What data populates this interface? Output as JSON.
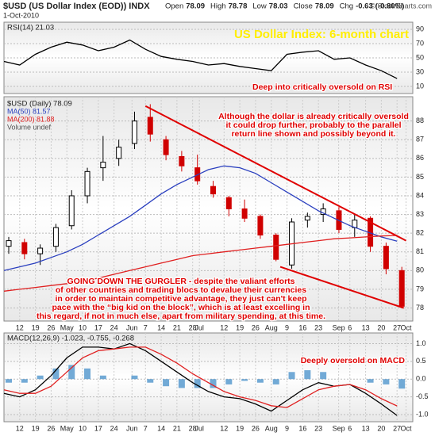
{
  "header": {
    "title": "$USD (US Dollar Index (EOD)) INDX",
    "date": "1-Oct-2010",
    "quote": [
      {
        "label": "Open",
        "value": 78.09
      },
      {
        "label": "High",
        "value": 78.78
      },
      {
        "label": "Low",
        "value": 78.03
      },
      {
        "label": "Close",
        "value": 78.09
      },
      {
        "label": "Chg",
        "value": -0.63
      }
    ],
    "change_pct": "(-0.80%)",
    "copyright": "© StockCharts.com"
  },
  "chart_data": [
    {
      "type": "line",
      "title": "US Dollar Index: 6-month chart",
      "title_color": "#ffee00",
      "legend": "RSI(14) 21.03",
      "x": [
        "2010-04-05",
        "2010-04-12",
        "2010-04-19",
        "2010-04-26",
        "2010-05-03",
        "2010-05-10",
        "2010-05-17",
        "2010-05-24",
        "2010-05-31",
        "2010-06-07",
        "2010-06-14",
        "2010-06-21",
        "2010-06-28",
        "2010-07-05",
        "2010-07-12",
        "2010-07-19",
        "2010-07-26",
        "2010-08-02",
        "2010-08-09",
        "2010-08-16",
        "2010-08-23",
        "2010-08-30",
        "2010-09-06",
        "2010-09-13",
        "2010-09-20",
        "2010-09-27"
      ],
      "series": [
        {
          "name": "RSI(14)",
          "color": "#000000",
          "values": [
            45,
            40,
            55,
            65,
            72,
            68,
            60,
            65,
            75,
            62,
            52,
            48,
            45,
            40,
            42,
            38,
            35,
            32,
            55,
            58,
            60,
            48,
            50,
            40,
            32,
            21.03
          ]
        }
      ],
      "xlim": [
        "2010-04-05",
        "2010-10-04"
      ],
      "ylim": [
        0,
        100
      ],
      "yticks": [
        10,
        30,
        50,
        70,
        90
      ],
      "grid": true,
      "annotations": [
        {
          "lines": [
            "Deep into critically oversold on RSI"
          ]
        }
      ]
    },
    {
      "type": "candlestick",
      "name": "$USD (Daily) 78.09",
      "volume_label": "Volume undef",
      "up_color": "#000000",
      "down_color": "#d00000",
      "x": [
        "2010-04-05",
        "2010-04-12",
        "2010-04-19",
        "2010-04-26",
        "2010-05-03",
        "2010-05-10",
        "2010-05-17",
        "2010-05-24",
        "2010-05-31",
        "2010-06-07",
        "2010-06-14",
        "2010-06-21",
        "2010-06-28",
        "2010-07-05",
        "2010-07-12",
        "2010-07-19",
        "2010-07-26",
        "2010-08-02",
        "2010-08-09",
        "2010-08-16",
        "2010-08-23",
        "2010-08-30",
        "2010-09-06",
        "2010-09-13",
        "2010-09-20",
        "2010-09-27"
      ],
      "open": [
        81.3,
        81.5,
        80.9,
        81.3,
        82.4,
        84.0,
        85.5,
        86.0,
        86.8,
        88.2,
        87.0,
        86.1,
        85.5,
        84.5,
        83.9,
        83.3,
        82.9,
        81.9,
        80.3,
        82.7,
        83.0,
        83.2,
        82.3,
        82.8,
        81.3,
        80.0
      ],
      "high": [
        81.8,
        81.7,
        81.4,
        82.5,
        84.3,
        85.5,
        87.2,
        87.0,
        88.5,
        88.9,
        87.2,
        86.4,
        86.2,
        84.8,
        84.0,
        83.8,
        83.0,
        82.0,
        82.8,
        83.1,
        83.6,
        83.4,
        83.0,
        82.9,
        81.5,
        80.2
      ],
      "low": [
        80.9,
        80.6,
        80.3,
        81.0,
        82.2,
        83.6,
        84.8,
        85.6,
        86.5,
        86.9,
        85.9,
        85.3,
        84.6,
        83.9,
        82.9,
        82.6,
        81.7,
        80.5,
        80.1,
        82.3,
        82.6,
        82.0,
        81.8,
        81.0,
        79.8,
        78.03
      ],
      "close": [
        81.6,
        80.9,
        81.2,
        82.3,
        84.0,
        85.3,
        85.8,
        86.6,
        88.0,
        87.3,
        86.2,
        85.6,
        84.8,
        84.1,
        83.3,
        82.8,
        81.9,
        80.6,
        82.6,
        82.9,
        83.3,
        82.2,
        82.7,
        81.3,
        80.1,
        78.09
      ],
      "series": [
        {
          "name": "MA(50) 81.57",
          "color": "#2a3fbf",
          "values": [
            80.0,
            80.2,
            80.4,
            80.7,
            81.0,
            81.4,
            81.9,
            82.4,
            82.9,
            83.5,
            84.1,
            84.6,
            85.0,
            85.4,
            85.6,
            85.5,
            85.2,
            84.7,
            84.2,
            83.7,
            83.2,
            82.8,
            82.4,
            82.1,
            81.8,
            81.57
          ]
        },
        {
          "name": "MA(200) 81.88",
          "color": "#e02020",
          "values": [
            78.9,
            79.0,
            79.1,
            79.2,
            79.3,
            79.4,
            79.6,
            79.8,
            80.0,
            80.2,
            80.4,
            80.6,
            80.8,
            80.9,
            81.0,
            81.1,
            81.2,
            81.3,
            81.4,
            81.5,
            81.6,
            81.7,
            81.75,
            81.8,
            81.85,
            81.88
          ]
        }
      ],
      "trendlines": [
        {
          "color": "#e00000",
          "x": [
            "2010-06-07",
            "2010-10-01"
          ],
          "y": [
            88.8,
            81.6
          ]
        },
        {
          "color": "#e00000",
          "x": [
            "2010-08-06",
            "2010-09-30"
          ],
          "y": [
            80.2,
            78.0
          ]
        }
      ],
      "xlim": [
        "2010-04-05",
        "2010-10-04"
      ],
      "ylim": [
        77.3,
        89.3
      ],
      "yticks": [
        78,
        79,
        80,
        81,
        82,
        83,
        84,
        85,
        86,
        87,
        88
      ],
      "grid": true,
      "xticks": [
        {
          "value": "2010-04-12",
          "label": "12"
        },
        {
          "value": "2010-04-19",
          "label": "19"
        },
        {
          "value": "2010-04-26",
          "label": "26"
        },
        {
          "value": "2010-05-03",
          "label": "May"
        },
        {
          "value": "2010-05-10",
          "label": "10"
        },
        {
          "value": "2010-05-17",
          "label": "17"
        },
        {
          "value": "2010-05-24",
          "label": "24"
        },
        {
          "value": "2010-06-01",
          "label": "Jun"
        },
        {
          "value": "2010-06-07",
          "label": "7"
        },
        {
          "value": "2010-06-14",
          "label": "14"
        },
        {
          "value": "2010-06-21",
          "label": "21"
        },
        {
          "value": "2010-06-28",
          "label": "28"
        },
        {
          "value": "2010-07-01",
          "label": "Jul"
        },
        {
          "value": "2010-07-12",
          "label": "12"
        },
        {
          "value": "2010-07-19",
          "label": "19"
        },
        {
          "value": "2010-07-26",
          "label": "26"
        },
        {
          "value": "2010-08-02",
          "label": "Aug"
        },
        {
          "value": "2010-08-09",
          "label": "9"
        },
        {
          "value": "2010-08-16",
          "label": "16"
        },
        {
          "value": "2010-08-23",
          "label": "23"
        },
        {
          "value": "2010-09-01",
          "label": "Sep"
        },
        {
          "value": "2010-09-06",
          "label": "6"
        },
        {
          "value": "2010-09-13",
          "label": "13"
        },
        {
          "value": "2010-09-20",
          "label": "20"
        },
        {
          "value": "2010-09-27",
          "label": "27"
        },
        {
          "value": "2010-10-01",
          "label": "Oct"
        }
      ],
      "annotations": [
        {
          "lines": [
            "Although the dollar is already critically oversold",
            "it could drop further, probably to the parallel",
            "return line shown and possibly beyond it."
          ]
        },
        {
          "lines": [
            "GOING DOWN THE GURGLER - despite the valiant efforts",
            "of other countries and trading blocs to devalue their currencies",
            "in order to maintain competitive advantage, they just can't keep",
            "pace with the “big kid on the block”, which is at least excelling in",
            "this regard, if not in much else, apart from military spending, at this time."
          ]
        }
      ]
    },
    {
      "type": "macd",
      "legend": "MACD(12,26,9) -1.023, -0.755, -0.268",
      "x": [
        "2010-04-05",
        "2010-04-12",
        "2010-04-19",
        "2010-04-26",
        "2010-05-03",
        "2010-05-10",
        "2010-05-17",
        "2010-05-24",
        "2010-05-31",
        "2010-06-07",
        "2010-06-14",
        "2010-06-21",
        "2010-06-28",
        "2010-07-05",
        "2010-07-12",
        "2010-07-19",
        "2010-07-26",
        "2010-08-02",
        "2010-08-09",
        "2010-08-16",
        "2010-08-23",
        "2010-08-30",
        "2010-09-06",
        "2010-09-13",
        "2010-09-20",
        "2010-09-27"
      ],
      "series": [
        {
          "name": "MACD",
          "color": "#000000",
          "values": [
            -0.4,
            -0.5,
            -0.3,
            0.1,
            0.6,
            0.9,
            0.9,
            0.85,
            1.0,
            0.8,
            0.5,
            0.2,
            -0.1,
            -0.35,
            -0.5,
            -0.55,
            -0.7,
            -0.9,
            -0.6,
            -0.3,
            -0.1,
            -0.2,
            -0.15,
            -0.4,
            -0.7,
            -1.023
          ]
        },
        {
          "name": "Signal",
          "color": "#e02020",
          "values": [
            -0.3,
            -0.4,
            -0.4,
            -0.2,
            0.2,
            0.6,
            0.8,
            0.85,
            0.9,
            0.9,
            0.7,
            0.45,
            0.15,
            -0.1,
            -0.35,
            -0.5,
            -0.6,
            -0.75,
            -0.8,
            -0.55,
            -0.3,
            -0.2,
            -0.15,
            -0.3,
            -0.55,
            -0.755
          ]
        }
      ],
      "histogram": {
        "color": "#4f95cc",
        "values": [
          -0.1,
          -0.1,
          0.1,
          0.3,
          0.4,
          0.3,
          0.1,
          0.0,
          0.1,
          -0.1,
          -0.2,
          -0.25,
          -0.25,
          -0.25,
          -0.15,
          -0.05,
          -0.1,
          -0.15,
          0.2,
          0.25,
          0.2,
          0.0,
          0.0,
          -0.1,
          -0.15,
          -0.268
        ]
      },
      "xlim": [
        "2010-04-05",
        "2010-10-04"
      ],
      "ylim": [
        -1.2,
        1.3
      ],
      "yticks": [
        {
          "value": 1,
          "label": "1.0"
        },
        {
          "value": 0.5,
          "label": "0.5"
        },
        {
          "value": 0,
          "label": "0.0"
        },
        {
          "value": -0.5,
          "label": "-0.5"
        },
        {
          "value": -1,
          "label": "-1.0"
        }
      ],
      "grid": true,
      "xticks": [
        {
          "value": "2010-04-12",
          "label": "12"
        },
        {
          "value": "2010-04-19",
          "label": "19"
        },
        {
          "value": "2010-04-26",
          "label": "26"
        },
        {
          "value": "2010-05-03",
          "label": "May"
        },
        {
          "value": "2010-05-10",
          "label": "10"
        },
        {
          "value": "2010-05-17",
          "label": "17"
        },
        {
          "value": "2010-05-24",
          "label": "24"
        },
        {
          "value": "2010-06-01",
          "label": "Jun"
        },
        {
          "value": "2010-06-07",
          "label": "7"
        },
        {
          "value": "2010-06-14",
          "label": "14"
        },
        {
          "value": "2010-06-21",
          "label": "21"
        },
        {
          "value": "2010-06-28",
          "label": "28"
        },
        {
          "value": "2010-07-01",
          "label": "Jul"
        },
        {
          "value": "2010-07-12",
          "label": "12"
        },
        {
          "value": "2010-07-19",
          "label": "19"
        },
        {
          "value": "2010-07-26",
          "label": "26"
        },
        {
          "value": "2010-08-02",
          "label": "Aug"
        },
        {
          "value": "2010-08-09",
          "label": "9"
        },
        {
          "value": "2010-08-16",
          "label": "16"
        },
        {
          "value": "2010-08-23",
          "label": "23"
        },
        {
          "value": "2010-09-01",
          "label": "Sep"
        },
        {
          "value": "2010-09-06",
          "label": "6"
        },
        {
          "value": "2010-09-13",
          "label": "13"
        },
        {
          "value": "2010-09-20",
          "label": "20"
        },
        {
          "value": "2010-09-27",
          "label": "27"
        },
        {
          "value": "2010-10-01",
          "label": "Oct"
        }
      ],
      "annotations": [
        {
          "lines": [
            "Deeply oversold on MACD"
          ]
        }
      ]
    }
  ]
}
